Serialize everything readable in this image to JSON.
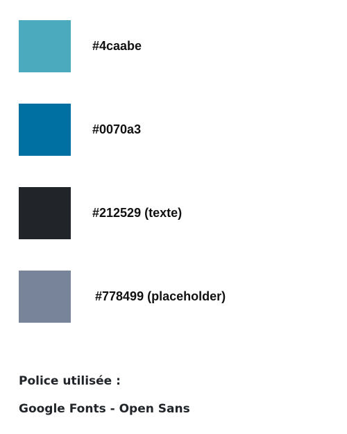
{
  "palette": [
    {
      "color": "#4caabe",
      "label": "#4caabe"
    },
    {
      "color": "#0070a3",
      "label": "#0070a3"
    },
    {
      "color": "#212529",
      "label": "#212529 (texte)"
    },
    {
      "color": "#778499",
      "label": "#778499 (placeholder)"
    }
  ],
  "font_info": {
    "heading": "Police utilisée :",
    "value": "Google Fonts - Open Sans"
  }
}
